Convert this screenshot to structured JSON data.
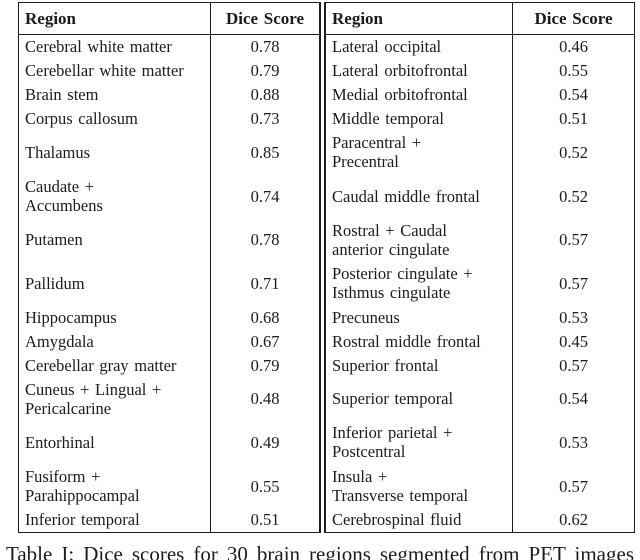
{
  "table": {
    "headers": {
      "region": "Region",
      "dice": "Dice Score"
    },
    "rows": [
      {
        "left_region": "Cerebral white matter",
        "left_dice": "0.78",
        "right_region": "Lateral occipital",
        "right_dice": "0.46"
      },
      {
        "left_region": "Cerebellar white matter",
        "left_dice": "0.79",
        "right_region": "Lateral orbitofrontal",
        "right_dice": "0.55"
      },
      {
        "left_region": "Brain stem",
        "left_dice": "0.88",
        "right_region": "Medial orbitofrontal",
        "right_dice": "0.54"
      },
      {
        "left_region": "Corpus callosum",
        "left_dice": "0.73",
        "right_region": "Middle temporal",
        "right_dice": "0.51"
      },
      {
        "left_region": "Thalamus",
        "left_dice": "0.85",
        "right_region": "Paracentral +\nPrecentral",
        "right_dice": "0.52"
      },
      {
        "left_region": "Caudate +\nAccumbens",
        "left_dice": "0.74",
        "right_region": "Caudal middle frontal",
        "right_dice": "0.52"
      },
      {
        "left_region": "Putamen",
        "left_dice": "0.78",
        "right_region": "Rostral + Caudal\nanterior cingulate",
        "right_dice": "0.57"
      },
      {
        "left_region": "Pallidum",
        "left_dice": "0.71",
        "right_region": "Posterior cingulate +\nIsthmus cingulate",
        "right_dice": "0.57"
      },
      {
        "left_region": "Hippocampus",
        "left_dice": "0.68",
        "right_region": "Precuneus",
        "right_dice": "0.53"
      },
      {
        "left_region": "Amygdala",
        "left_dice": "0.67",
        "right_region": "Rostral middle frontal",
        "right_dice": "0.45"
      },
      {
        "left_region": "Cerebellar gray matter",
        "left_dice": "0.79",
        "right_region": "Superior frontal",
        "right_dice": "0.57"
      },
      {
        "left_region": "Cuneus + Lingual +\nPericalcarine",
        "left_dice": "0.48",
        "right_region": "Superior temporal",
        "right_dice": "0.54"
      },
      {
        "left_region": "Entorhinal",
        "left_dice": "0.49",
        "right_region": "Inferior parietal +\nPostcentral",
        "right_dice": "0.53"
      },
      {
        "left_region": "Fusiform +\nParahippocampal",
        "left_dice": "0.55",
        "right_region": "Insula +\nTransverse temporal",
        "right_dice": "0.57"
      },
      {
        "left_region": "Inferior temporal",
        "left_dice": "0.51",
        "right_region": "Cerebrospinal fluid",
        "right_dice": "0.62"
      }
    ]
  },
  "caption": "Table I: Dice scores for 30 brain regions segmented from PET images",
  "colors": {
    "text": "#1b1b1b",
    "rule": "#1c1c1c",
    "background": "#ffffff"
  }
}
